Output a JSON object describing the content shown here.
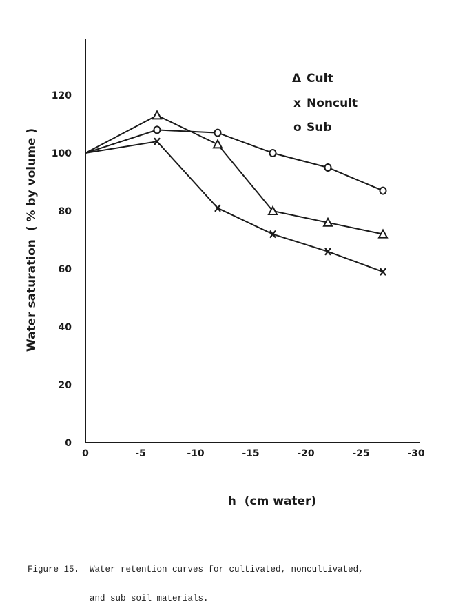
{
  "chart_data": {
    "type": "line",
    "title": "",
    "xlabel": "h  (cm water)",
    "ylabel": "Water saturation  ( % by volume )",
    "xlim": [
      0,
      -30
    ],
    "ylim": [
      0,
      140
    ],
    "x_ticks": [
      {
        "value": 0,
        "label": "0"
      },
      {
        "value": -5,
        "label": "-5"
      },
      {
        "value": -10,
        "label": "-10"
      },
      {
        "value": -15,
        "label": "-15"
      },
      {
        "value": -20,
        "label": "-20"
      },
      {
        "value": -25,
        "label": "-25"
      },
      {
        "value": -30,
        "label": "-30"
      }
    ],
    "y_ticks": [
      {
        "value": 0,
        "label": "0"
      },
      {
        "value": 20,
        "label": "20"
      },
      {
        "value": 40,
        "label": "40"
      },
      {
        "value": 60,
        "label": "60"
      },
      {
        "value": 80,
        "label": "80"
      },
      {
        "value": 100,
        "label": "100"
      },
      {
        "value": 120,
        "label": "120"
      }
    ],
    "grid": false,
    "legend_position": "top-right",
    "series": [
      {
        "name": "Cult",
        "marker": "triangle",
        "x": [
          0,
          -6.5,
          -12,
          -17,
          -22,
          -27
        ],
        "y": [
          100,
          113,
          103,
          80,
          76,
          72
        ]
      },
      {
        "name": "Noncult",
        "marker": "x",
        "x": [
          0,
          -6.5,
          -12,
          -17,
          -22,
          -27
        ],
        "y": [
          100,
          104,
          81,
          72,
          66,
          59
        ]
      },
      {
        "name": "Sub",
        "marker": "circle",
        "x": [
          0,
          -6.5,
          -12,
          -17,
          -22,
          -27
        ],
        "y": [
          100,
          108,
          107,
          100,
          95,
          87
        ]
      }
    ]
  },
  "legend": {
    "cult_symbol": "Δ",
    "noncult_symbol": "x",
    "sub_symbol": "o"
  },
  "caption": {
    "line1": "Figure 15.  Water retention curves for cultivated, noncultivated,",
    "line2": "            and sub soil materials."
  }
}
